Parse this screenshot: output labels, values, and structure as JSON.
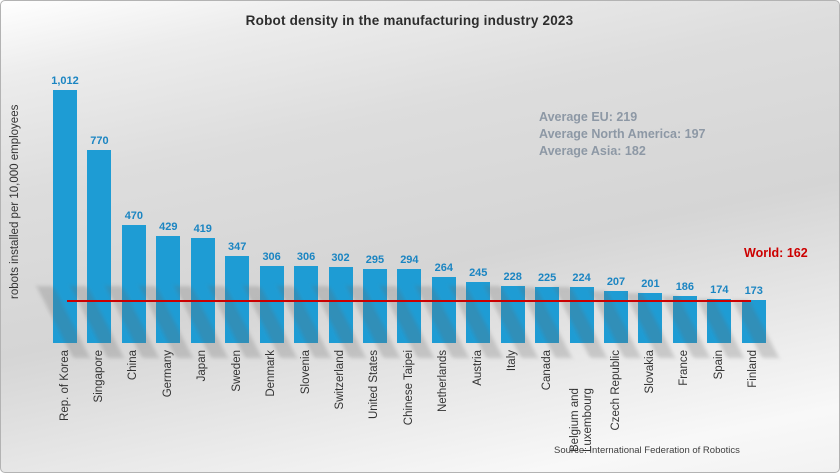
{
  "chart_data": {
    "type": "bar",
    "title": "Robot density in the manufacturing industry 2023",
    "ylabel": "robots installed per 10,000 employees",
    "xlabel": "",
    "categories": [
      "Rep. of Korea",
      "Singapore",
      "China",
      "Germany",
      "Japan",
      "Sweden",
      "Denmark",
      "Slovenia",
      "Switzerland",
      "United States",
      "Chinese Taipei",
      "Netherlands",
      "Austria",
      "Italy",
      "Canada",
      "Belgium and Luxembourg",
      "Czech Republic",
      "Slovakia",
      "France",
      "Spain",
      "Finland"
    ],
    "values": [
      1012,
      770,
      470,
      429,
      419,
      347,
      306,
      306,
      302,
      295,
      294,
      264,
      245,
      228,
      225,
      224,
      207,
      201,
      186,
      174,
      173
    ],
    "value_labels": [
      "1,012",
      "770",
      "470",
      "429",
      "419",
      "347",
      "306",
      "306",
      "302",
      "295",
      "294",
      "264",
      "245",
      "228",
      "225",
      "224",
      "207",
      "201",
      "186",
      "174",
      "173"
    ],
    "ylim": [
      0,
      1088
    ],
    "grid": false,
    "legend": "none",
    "bar_color": "#1e9cd4",
    "value_label_color": "#1b85c2",
    "reference_line": {
      "label": "World: 162",
      "value": 162,
      "color": "#cc0000"
    },
    "annotations": {
      "lines": [
        "Average EU: 219",
        "Average North America: 197",
        "Average Asia: 182"
      ],
      "color": "#8d98a5"
    },
    "source": "Source: International Federation of Robotics"
  }
}
